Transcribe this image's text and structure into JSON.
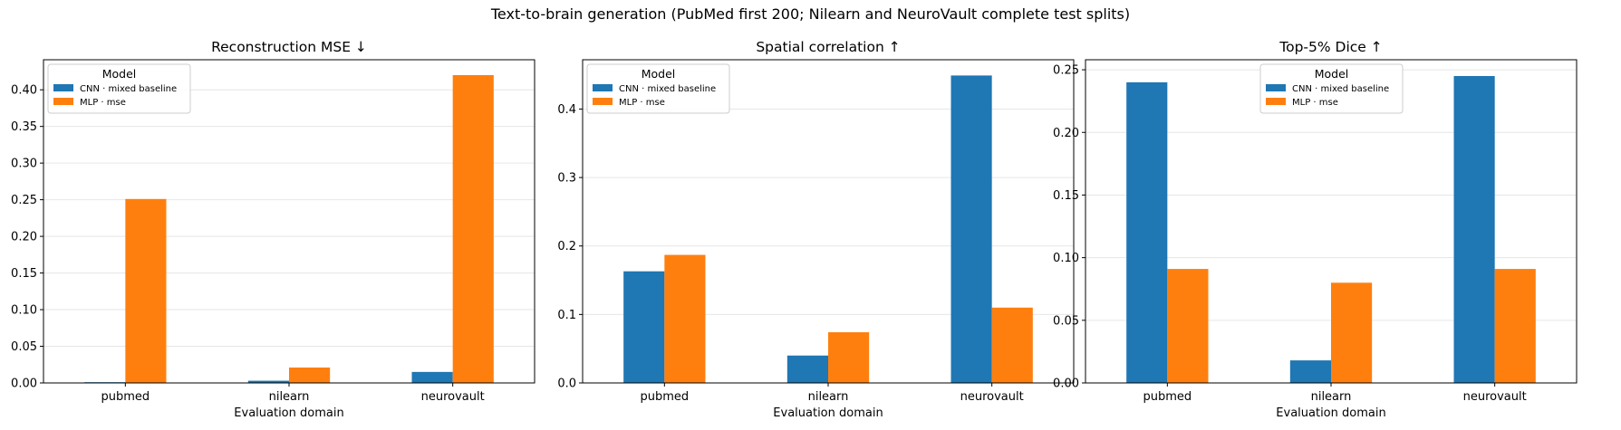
{
  "figure": {
    "suptitle": "Text-to-brain generation (PubMed first 200; Nilearn and NeuroVault complete test splits)",
    "colors": {
      "CNN · mixed baseline": "#1f77b4",
      "MLP · mse": "#ff7f0e"
    }
  },
  "chart_data": [
    {
      "type": "bar",
      "title": "Reconstruction MSE ↓",
      "xlabel": "Evaluation domain",
      "ylabel": "",
      "categories": [
        "pubmed",
        "nilearn",
        "neurovault"
      ],
      "ylim": [
        0,
        0.441
      ],
      "yticks": [
        0.0,
        0.05,
        0.1,
        0.15,
        0.2,
        0.25,
        0.3,
        0.35,
        0.4
      ],
      "ytick_labels": [
        "0.00",
        "0.05",
        "0.10",
        "0.15",
        "0.20",
        "0.25",
        "0.30",
        "0.35",
        "0.40"
      ],
      "grid": "y",
      "legend": {
        "title": "Model",
        "placement": "top-left"
      },
      "series": [
        {
          "name": "CNN · mixed baseline",
          "values": [
            0.001,
            0.003,
            0.015
          ]
        },
        {
          "name": "MLP · mse",
          "values": [
            0.251,
            0.021,
            0.42
          ]
        }
      ]
    },
    {
      "type": "bar",
      "title": "Spatial correlation ↑",
      "xlabel": "Evaluation domain",
      "ylabel": "",
      "categories": [
        "pubmed",
        "nilearn",
        "neurovault"
      ],
      "ylim": [
        0,
        0.472
      ],
      "yticks": [
        0.0,
        0.1,
        0.2,
        0.3,
        0.4
      ],
      "ytick_labels": [
        "0.0",
        "0.1",
        "0.2",
        "0.3",
        "0.4"
      ],
      "grid": "y",
      "legend": {
        "title": "Model",
        "placement": "top-left"
      },
      "series": [
        {
          "name": "CNN · mixed baseline",
          "values": [
            0.163,
            0.04,
            0.449
          ]
        },
        {
          "name": "MLP · mse",
          "values": [
            0.187,
            0.074,
            0.11
          ]
        }
      ]
    },
    {
      "type": "bar",
      "title": "Top-5% Dice ↑",
      "xlabel": "Evaluation domain",
      "ylabel": "",
      "categories": [
        "pubmed",
        "nilearn",
        "neurovault"
      ],
      "ylim": [
        0,
        0.258
      ],
      "yticks": [
        0.0,
        0.05,
        0.1,
        0.15,
        0.2,
        0.25
      ],
      "ytick_labels": [
        "0.00",
        "0.05",
        "0.10",
        "0.15",
        "0.20",
        "0.25"
      ],
      "grid": "y",
      "legend": {
        "title": "Model",
        "placement": "top-center"
      },
      "series": [
        {
          "name": "CNN · mixed baseline",
          "values": [
            0.24,
            0.018,
            0.245
          ]
        },
        {
          "name": "MLP · mse",
          "values": [
            0.091,
            0.08,
            0.091
          ]
        }
      ]
    }
  ]
}
